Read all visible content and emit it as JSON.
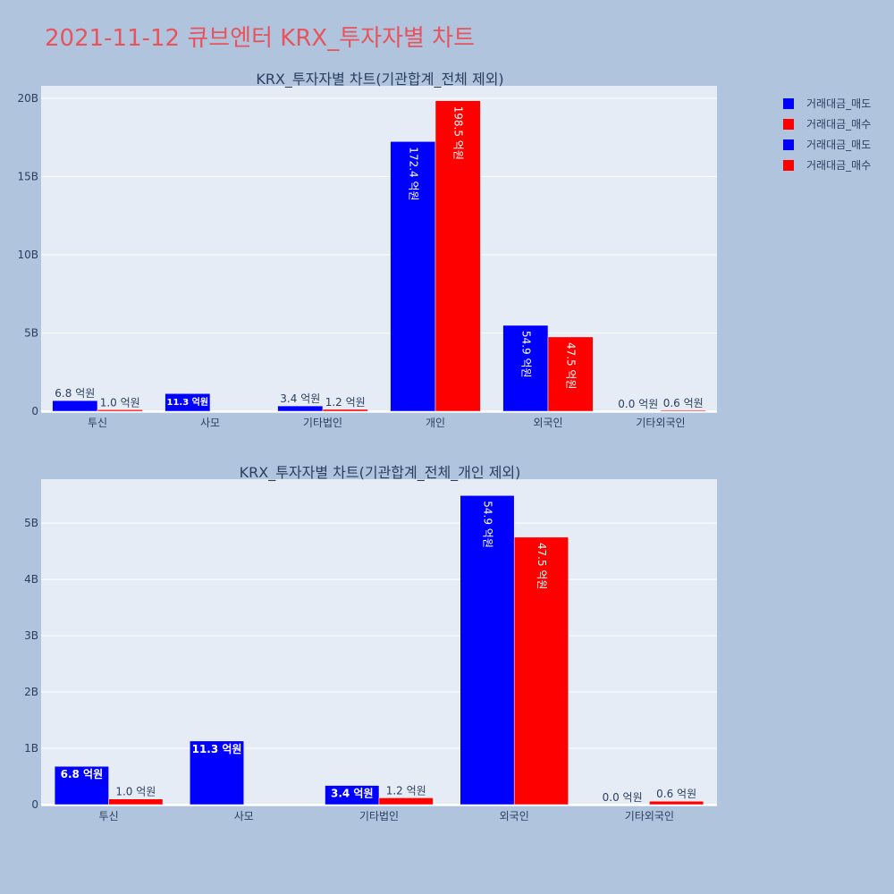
{
  "page_title": "2021-11-12 큐브엔터 KRX_투자자별 차트",
  "legend": [
    {
      "label": "거래대금_매도",
      "color": "#0000ff"
    },
    {
      "label": "거래대금_매수",
      "color": "#ff0000"
    },
    {
      "label": "거래대금_매도",
      "color": "#0000ff"
    },
    {
      "label": "거래대금_매수",
      "color": "#ff0000"
    }
  ],
  "chart_data": [
    {
      "type": "bar",
      "title": "KRX_투자자별 차트(기관합계_전체 제외)",
      "categories": [
        "투신",
        "사모",
        "기타법인",
        "개인",
        "외국인",
        "기타외국인"
      ],
      "yticks": [
        "0",
        "5B",
        "10B",
        "15B",
        "20B"
      ],
      "ylim": [
        0,
        20.8
      ],
      "grid": true,
      "series": [
        {
          "name": "거래대금_매도",
          "color": "#0000ff",
          "values": [
            0.68,
            1.13,
            0.34,
            17.24,
            5.49,
            0.0
          ],
          "labels": [
            "6.8 억원",
            "11.3 억원",
            "3.4 억원",
            "172.4 억원",
            "54.9 억원",
            "0.0 억원"
          ]
        },
        {
          "name": "거래대금_매수",
          "color": "#ff0000",
          "values": [
            0.1,
            0.0,
            0.12,
            19.85,
            4.75,
            0.06
          ],
          "labels": [
            "1.0 억원",
            "",
            "1.2 억원",
            "198.5 억원",
            "47.5 억원",
            "0.6 억원"
          ]
        }
      ]
    },
    {
      "type": "bar",
      "title": "KRX_투자자별 차트(기관합계_전체_개인 제외)",
      "categories": [
        "투신",
        "사모",
        "기타법인",
        "외국인",
        "기타외국인"
      ],
      "yticks": [
        "0",
        "1B",
        "2B",
        "3B",
        "4B",
        "5B"
      ],
      "ylim": [
        0,
        5.78
      ],
      "grid": true,
      "series": [
        {
          "name": "거래대금_매도",
          "color": "#0000ff",
          "values": [
            0.68,
            1.13,
            0.34,
            5.49,
            0.0
          ],
          "labels": [
            "6.8 억원",
            "11.3 억원",
            "3.4 억원",
            "54.9 억원",
            "0.0 억원"
          ]
        },
        {
          "name": "거래대금_매수",
          "color": "#ff0000",
          "values": [
            0.1,
            0.0,
            0.12,
            4.75,
            0.06
          ],
          "labels": [
            "1.0 억원",
            "",
            "1.2 억원",
            "47.5 억원",
            "0.6 억원"
          ]
        }
      ]
    }
  ]
}
